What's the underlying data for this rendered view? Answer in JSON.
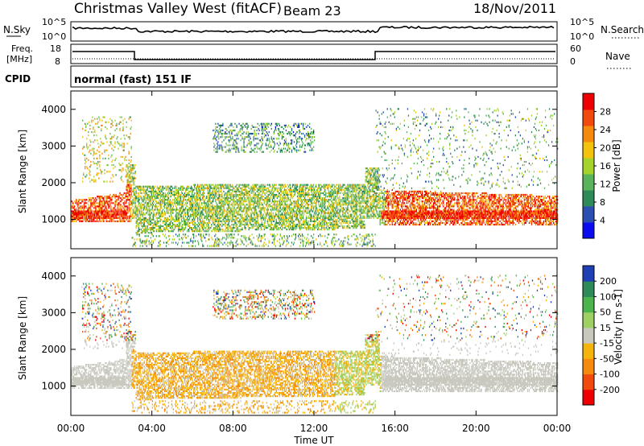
{
  "header": {
    "station": "Christmas Valley West (fitACF)",
    "beam": "Beam 23",
    "date": "18/Nov/2011"
  },
  "noise_panel": {
    "left_label": "N.Sky",
    "left_ticks": [
      "10^5",
      "10^0"
    ],
    "right_label": "N.Search",
    "right_ticks": [
      "10^5",
      "10^0"
    ]
  },
  "freq_panel": {
    "left_label_1": "Freq.",
    "left_label_2": "[MHz]",
    "left_ticks": [
      "18",
      "8"
    ],
    "right_label": "Nave",
    "right_ticks": [
      "60",
      "0"
    ]
  },
  "cpid": {
    "label": "CPID",
    "value": "normal (fast) 151 IF"
  },
  "colors": {
    "power_scale": [
      "#0b0bf0",
      "#2b4fb0",
      "#2f8a59",
      "#5bb35b",
      "#a5d32a",
      "#f2c20c",
      "#f58a0c",
      "#f24a0c",
      "#ee0000"
    ],
    "velocity_scale": [
      "#ee0000",
      "#f24a0c",
      "#f58a0c",
      "#f5b40c",
      "#c8c8be",
      "#9ed064",
      "#4cb44c",
      "#2f8a59",
      "#1f3fb4"
    ]
  },
  "chart_data": [
    {
      "type": "heatmap",
      "panel": "power",
      "ylabel": "Slant Range [km]",
      "y_ticks": [
        "4000",
        "3000",
        "2000",
        "1000"
      ],
      "ylim": [
        200,
        4500
      ],
      "colorbar_label": "Power [dB]",
      "colorbar_ticks": [
        "28",
        "24",
        "20",
        "16",
        "12",
        "8",
        "4"
      ],
      "colorbar_range": [
        0,
        30
      ],
      "x_ticks": [
        "00:00",
        "04:00",
        "08:00",
        "12:00",
        "16:00",
        "20:00",
        "00:00"
      ],
      "xlim_hours": [
        0,
        24
      ]
    },
    {
      "type": "heatmap",
      "panel": "velocity",
      "ylabel": "Slant Range [km]",
      "y_ticks": [
        "4000",
        "3000",
        "2000",
        "1000"
      ],
      "ylim": [
        200,
        4500
      ],
      "colorbar_label": "Velocity [m s-1]",
      "colorbar_ticks": [
        "200",
        "100",
        "50",
        "15",
        "-15",
        "-50",
        "-100",
        "-200"
      ],
      "colorbar_range": [
        -250,
        250
      ],
      "x_ticks": [
        "00:00",
        "04:00",
        "08:00",
        "12:00",
        "16:00",
        "20:00",
        "00:00"
      ],
      "xlim_hours": [
        0,
        24
      ],
      "xlabel": "Time UT"
    }
  ]
}
